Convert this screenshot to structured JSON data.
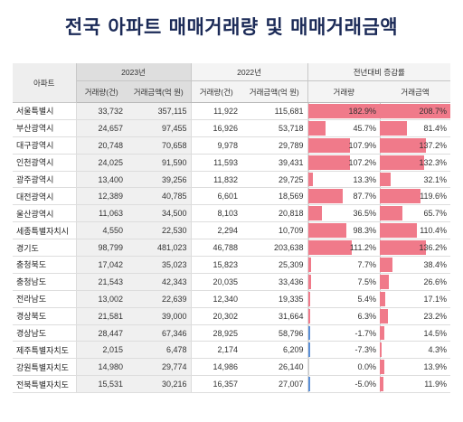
{
  "title": "전국 아파트 매매거래량 및 매매거래금액",
  "header": {
    "col_region": "아파트",
    "group_2023": "2023년",
    "group_2022": "2022년",
    "group_change": "전년대비 증감률",
    "volume": "거래량(건)",
    "amount": "거래금액(억 원)",
    "volume_short": "거래량",
    "amount_short": "거래금액"
  },
  "colors": {
    "positive_bar": "#f07a8a",
    "negative_bar": "#5b8fd6",
    "title": "#1b2a57"
  },
  "rows": [
    {
      "region": "서울특별시",
      "v23": "33,732",
      "a23": "357,115",
      "v22": "11,922",
      "a22": "115,681",
      "dv": "182.9%",
      "da": "208.7%",
      "dvn": 182.9,
      "dan": 208.7
    },
    {
      "region": "부산광역시",
      "v23": "24,657",
      "a23": "97,455",
      "v22": "16,926",
      "a22": "53,718",
      "dv": "45.7%",
      "da": "81.4%",
      "dvn": 45.7,
      "dan": 81.4
    },
    {
      "region": "대구광역시",
      "v23": "20,748",
      "a23": "70,658",
      "v22": "9,978",
      "a22": "29,789",
      "dv": "107.9%",
      "da": "137.2%",
      "dvn": 107.9,
      "dan": 137.2
    },
    {
      "region": "인천광역시",
      "v23": "24,025",
      "a23": "91,590",
      "v22": "11,593",
      "a22": "39,431",
      "dv": "107.2%",
      "da": "132.3%",
      "dvn": 107.2,
      "dan": 132.3
    },
    {
      "region": "광주광역시",
      "v23": "13,400",
      "a23": "39,256",
      "v22": "11,832",
      "a22": "29,725",
      "dv": "13.3%",
      "da": "32.1%",
      "dvn": 13.3,
      "dan": 32.1
    },
    {
      "region": "대전광역시",
      "v23": "12,389",
      "a23": "40,785",
      "v22": "6,601",
      "a22": "18,569",
      "dv": "87.7%",
      "da": "119.6%",
      "dvn": 87.7,
      "dan": 119.6
    },
    {
      "region": "울산광역시",
      "v23": "11,063",
      "a23": "34,500",
      "v22": "8,103",
      "a22": "20,818",
      "dv": "36.5%",
      "da": "65.7%",
      "dvn": 36.5,
      "dan": 65.7
    },
    {
      "region": "세종특별자치시",
      "v23": "4,550",
      "a23": "22,530",
      "v22": "2,294",
      "a22": "10,709",
      "dv": "98.3%",
      "da": "110.4%",
      "dvn": 98.3,
      "dan": 110.4
    },
    {
      "region": "경기도",
      "v23": "98,799",
      "a23": "481,023",
      "v22": "46,788",
      "a22": "203,638",
      "dv": "111.2%",
      "da": "136.2%",
      "dvn": 111.2,
      "dan": 136.2
    },
    {
      "region": "충청북도",
      "v23": "17,042",
      "a23": "35,023",
      "v22": "15,823",
      "a22": "25,309",
      "dv": "7.7%",
      "da": "38.4%",
      "dvn": 7.7,
      "dan": 38.4
    },
    {
      "region": "충청남도",
      "v23": "21,543",
      "a23": "42,343",
      "v22": "20,035",
      "a22": "33,436",
      "dv": "7.5%",
      "da": "26.6%",
      "dvn": 7.5,
      "dan": 26.6
    },
    {
      "region": "전라남도",
      "v23": "13,002",
      "a23": "22,639",
      "v22": "12,340",
      "a22": "19,335",
      "dv": "5.4%",
      "da": "17.1%",
      "dvn": 5.4,
      "dan": 17.1
    },
    {
      "region": "경상북도",
      "v23": "21,581",
      "a23": "39,000",
      "v22": "20,302",
      "a22": "31,664",
      "dv": "6.3%",
      "da": "23.2%",
      "dvn": 6.3,
      "dan": 23.2
    },
    {
      "region": "경상남도",
      "v23": "28,447",
      "a23": "67,346",
      "v22": "28,925",
      "a22": "58,796",
      "dv": "-1.7%",
      "da": "14.5%",
      "dvn": -1.7,
      "dan": 14.5
    },
    {
      "region": "제주특별자치도",
      "v23": "2,015",
      "a23": "6,478",
      "v22": "2,174",
      "a22": "6,209",
      "dv": "-7.3%",
      "da": "4.3%",
      "dvn": -7.3,
      "dan": 4.3
    },
    {
      "region": "강원특별자치도",
      "v23": "14,980",
      "a23": "29,774",
      "v22": "14,986",
      "a22": "26,140",
      "dv": "0.0%",
      "da": "13.9%",
      "dvn": 0.0,
      "dan": 13.9
    },
    {
      "region": "전북특별자치도",
      "v23": "15,531",
      "a23": "30,216",
      "v22": "16,357",
      "a22": "27,007",
      "dv": "-5.0%",
      "da": "11.9%",
      "dvn": -5.0,
      "dan": 11.9
    }
  ]
}
